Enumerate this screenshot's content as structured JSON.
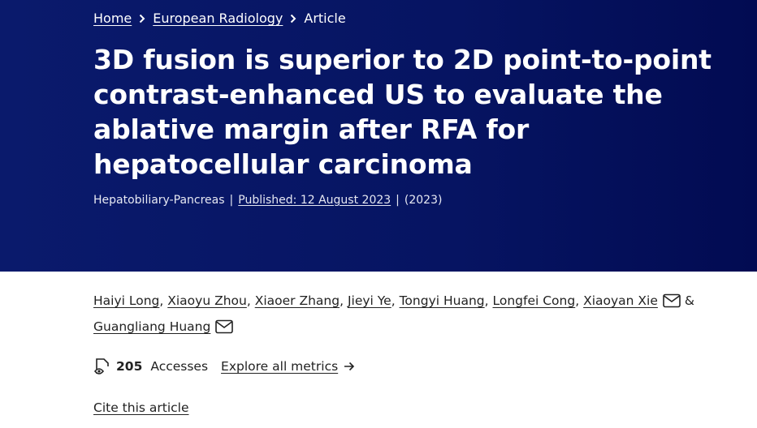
{
  "breadcrumb": {
    "items": [
      "Home",
      "European Radiology",
      "Article"
    ]
  },
  "article": {
    "title": "3D fusion is superior to 2D point-to-point contrast-enhanced US to evaluate the ablative margin after RFA for hepatocellular carcinoma",
    "meta": {
      "section": "Hepatobiliary-Pancreas",
      "separator": "|",
      "published": "Published: 12 August 2023",
      "year": "(2023)"
    },
    "authors": {
      "separator": ",",
      "conjunction": "&",
      "list": [
        {
          "name": "Haiyi Long",
          "email": false
        },
        {
          "name": "Xiaoyu Zhou",
          "email": false
        },
        {
          "name": "Xiaoer Zhang",
          "email": false
        },
        {
          "name": "Jieyi Ye",
          "email": false
        },
        {
          "name": "Tongyi Huang",
          "email": false
        },
        {
          "name": "Longfei Cong",
          "email": false
        },
        {
          "name": "Xiaoyan Xie",
          "email": true
        },
        {
          "name": "Guangliang Huang",
          "email": true
        }
      ]
    },
    "metrics": {
      "count": "205",
      "label": "Accesses",
      "link": "Explore all metrics"
    },
    "cite": "Cite this article"
  }
}
